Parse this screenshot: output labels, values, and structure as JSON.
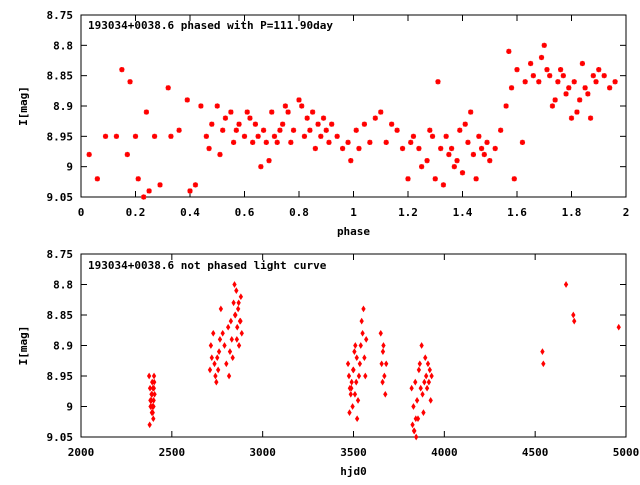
{
  "chart_data": [
    {
      "type": "scatter",
      "title": "193034+0038.6 phased with P=111.90day",
      "xlabel": "phase",
      "ylabel": "I[mag]",
      "xlim": [
        0,
        2
      ],
      "ylim": [
        9.05,
        8.75
      ],
      "y_inverted": true,
      "xticks": [
        "0",
        "0.2",
        "0.4",
        "0.6",
        "0.8",
        "1",
        "1.2",
        "1.4",
        "1.6",
        "1.8",
        "2"
      ],
      "yticks": [
        "8.75",
        "8.8",
        "8.85",
        "8.9",
        "8.95",
        "9",
        "9.05"
      ],
      "grid": false,
      "marker": "plus-x",
      "color": "#ff0000",
      "x": [
        0.03,
        0.06,
        0.09,
        0.13,
        0.15,
        0.17,
        0.18,
        0.2,
        0.21,
        0.23,
        0.24,
        0.25,
        0.27,
        0.29,
        0.32,
        0.33,
        0.36,
        0.39,
        0.4,
        0.42,
        0.44,
        0.46,
        0.47,
        0.48,
        0.5,
        0.51,
        0.52,
        0.53,
        0.55,
        0.56,
        0.57,
        0.58,
        0.6,
        0.61,
        0.62,
        0.63,
        0.64,
        0.65,
        0.66,
        0.67,
        0.68,
        0.69,
        0.7,
        0.71,
        0.72,
        0.73,
        0.74,
        0.75,
        0.76,
        0.77,
        0.78,
        0.8,
        0.81,
        0.82,
        0.83,
        0.84,
        0.85,
        0.86,
        0.87,
        0.88,
        0.89,
        0.9,
        0.91,
        0.92,
        0.94,
        0.96,
        0.98,
        0.99,
        1.01,
        1.02,
        1.04,
        1.06,
        1.08,
        1.1,
        1.12,
        1.14,
        1.16,
        1.18,
        1.2,
        1.21,
        1.22,
        1.24,
        1.25,
        1.27,
        1.28,
        1.29,
        1.3,
        1.31,
        1.32,
        1.33,
        1.34,
        1.35,
        1.36,
        1.37,
        1.38,
        1.39,
        1.4,
        1.41,
        1.42,
        1.43,
        1.44,
        1.45,
        1.46,
        1.47,
        1.48,
        1.49,
        1.5,
        1.52,
        1.54,
        1.56,
        1.57,
        1.58,
        1.59,
        1.6,
        1.62,
        1.63,
        1.65,
        1.66,
        1.68,
        1.69,
        1.7,
        1.71,
        1.72,
        1.73,
        1.74,
        1.75,
        1.76,
        1.77,
        1.78,
        1.79,
        1.8,
        1.81,
        1.82,
        1.83,
        1.84,
        1.85,
        1.86,
        1.87,
        1.88,
        1.89,
        1.9,
        1.92,
        1.94,
        1.96
      ],
      "y": [
        8.98,
        9.02,
        8.95,
        8.95,
        8.84,
        8.98,
        8.86,
        8.95,
        9.02,
        9.05,
        8.91,
        9.04,
        8.95,
        9.03,
        8.87,
        8.95,
        8.94,
        8.89,
        9.04,
        9.03,
        8.9,
        8.95,
        8.97,
        8.93,
        8.9,
        8.98,
        8.94,
        8.92,
        8.91,
        8.96,
        8.94,
        8.93,
        8.95,
        8.91,
        8.92,
        8.96,
        8.93,
        8.95,
        9.0,
        8.94,
        8.96,
        8.99,
        8.91,
        8.95,
        8.96,
        8.94,
        8.93,
        8.9,
        8.91,
        8.96,
        8.94,
        8.89,
        8.9,
        8.95,
        8.92,
        8.94,
        8.91,
        8.97,
        8.93,
        8.95,
        8.92,
        8.94,
        8.96,
        8.93,
        8.95,
        8.97,
        8.96,
        8.99,
        8.94,
        8.97,
        8.93,
        8.96,
        8.92,
        8.91,
        8.96,
        8.93,
        8.94,
        8.97,
        9.02,
        8.96,
        8.95,
        8.97,
        9.0,
        8.99,
        8.94,
        8.95,
        9.02,
        8.86,
        8.97,
        9.03,
        8.95,
        8.98,
        8.97,
        9.0,
        8.99,
        8.94,
        9.01,
        8.93,
        8.96,
        8.91,
        8.98,
        9.02,
        8.95,
        8.97,
        8.98,
        8.96,
        8.99,
        8.97,
        8.94,
        8.9,
        8.81,
        8.87,
        9.02,
        8.84,
        8.96,
        8.86,
        8.83,
        8.85,
        8.86,
        8.82,
        8.8,
        8.84,
        8.85,
        8.9,
        8.89,
        8.86,
        8.84,
        8.85,
        8.88,
        8.87,
        8.92,
        8.86,
        8.91,
        8.89,
        8.83,
        8.87,
        8.88,
        8.92,
        8.85,
        8.86,
        8.84,
        8.85,
        8.87,
        8.86
      ]
    },
    {
      "type": "scatter",
      "title": "193034+0038.6 not phased light curve",
      "xlabel": "hjd0",
      "ylabel": "I[mag]",
      "xlim": [
        2000,
        5000
      ],
      "ylim": [
        9.05,
        8.75
      ],
      "y_inverted": true,
      "xticks": [
        "2000",
        "2500",
        "3000",
        "3500",
        "4000",
        "4500",
        "5000"
      ],
      "yticks": [
        "8.75",
        "8.8",
        "8.85",
        "8.9",
        "8.95",
        "9",
        "9.05"
      ],
      "grid": false,
      "marker": "diamond",
      "color": "#ff0000",
      "x": [
        2375,
        2380,
        2382,
        2385,
        2388,
        2390,
        2392,
        2394,
        2396,
        2398,
        2400,
        2402,
        2378,
        2383,
        2387,
        2391,
        2395,
        2399,
        2401,
        2403,
        2405,
        2710,
        2715,
        2720,
        2728,
        2735,
        2740,
        2745,
        2750,
        2755,
        2760,
        2765,
        2770,
        2780,
        2790,
        2800,
        2810,
        2815,
        2820,
        2825,
        2830,
        2835,
        2840,
        2845,
        2850,
        2855,
        2860,
        2865,
        2870,
        2875,
        2880,
        2885,
        2848,
        2858,
        2868,
        2878,
        3470,
        3475,
        3480,
        3485,
        3490,
        3495,
        3500,
        3505,
        3510,
        3515,
        3520,
        3525,
        3530,
        3535,
        3540,
        3545,
        3550,
        3555,
        3560,
        3565,
        3570,
        3478,
        3488,
        3498,
        3508,
        3518,
        3650,
        3655,
        3660,
        3665,
        3670,
        3675,
        3680,
        3662,
        3820,
        3825,
        3830,
        3835,
        3840,
        3845,
        3850,
        3855,
        3860,
        3865,
        3870,
        3875,
        3880,
        3885,
        3890,
        3895,
        3900,
        3905,
        3910,
        3915,
        3920,
        3925,
        3930,
        3833,
        3843,
        4540,
        4545,
        4670,
        4710,
        4715,
        4960
      ],
      "y": [
        8.95,
        8.97,
        8.99,
        9.0,
        8.98,
        9.01,
        8.96,
        9.0,
        8.97,
        9.02,
        8.99,
        8.95,
        9.03,
        9.0,
        8.99,
        8.98,
        9.01,
        9.0,
        8.97,
        8.96,
        8.98,
        8.94,
        8.9,
        8.92,
        8.88,
        8.93,
        8.95,
        8.96,
        8.92,
        8.94,
        8.91,
        8.89,
        8.84,
        8.88,
        8.9,
        8.93,
        8.87,
        8.95,
        8.91,
        8.86,
        8.89,
        8.92,
        8.83,
        8.8,
        8.85,
        8.81,
        8.87,
        8.84,
        8.9,
        8.86,
        8.82,
        8.88,
        8.85,
        8.89,
        8.83,
        8.86,
        8.93,
        8.95,
        8.97,
        8.98,
        8.96,
        9.0,
        8.94,
        8.91,
        8.9,
        8.96,
        9.02,
        8.99,
        8.95,
        8.93,
        8.9,
        8.86,
        8.88,
        8.84,
        8.92,
        8.95,
        8.89,
        9.01,
        8.97,
        8.94,
        8.98,
        8.92,
        8.88,
        8.93,
        8.96,
        8.9,
        8.95,
        8.98,
        8.93,
        8.91,
        8.97,
        9.03,
        9.0,
        9.04,
        8.96,
        9.05,
        8.99,
        9.02,
        8.94,
        8.93,
        8.97,
        8.9,
        8.98,
        9.01,
        8.96,
        8.92,
        8.95,
        8.97,
        8.93,
        8.96,
        8.94,
        8.99,
        8.95,
        9.04,
        9.02,
        8.91,
        8.93,
        8.8,
        8.85,
        8.86,
        8.87
      ]
    }
  ]
}
